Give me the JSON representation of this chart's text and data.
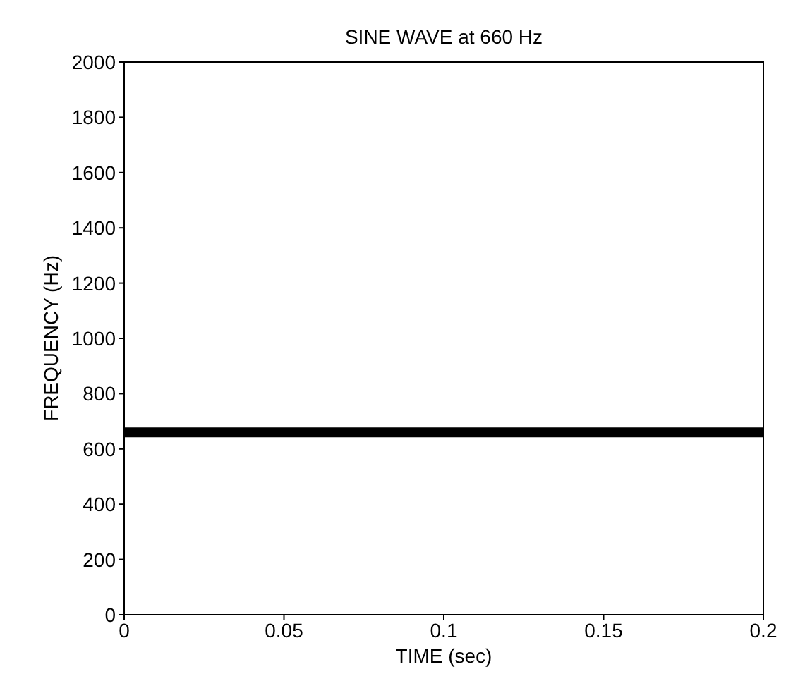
{
  "chart_data": {
    "type": "line",
    "title": "SINE WAVE at 660 Hz",
    "xlabel": "TIME (sec)",
    "ylabel": "FREQUENCY (Hz)",
    "x": [
      0,
      0.2
    ],
    "series": [
      {
        "color": "#000000",
        "values": [
          660,
          660
        ]
      }
    ],
    "xlim": [
      0,
      0.2
    ],
    "xticks": [
      0,
      0.05,
      0.1,
      0.15,
      0.2
    ],
    "ylim": [
      0,
      2000
    ],
    "yticks": [
      0,
      200,
      400,
      600,
      800,
      1000,
      1200,
      1400,
      1600,
      1800,
      2000
    ],
    "grid": false,
    "legend": false,
    "marker": "none",
    "line_style": "solid"
  }
}
